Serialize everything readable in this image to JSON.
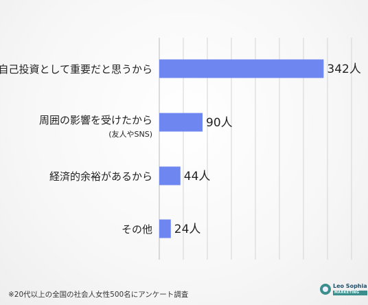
{
  "chart_data": {
    "type": "bar",
    "orientation": "horizontal",
    "categories": [
      {
        "label": "自己投資として重要だと思うから",
        "sublabel": ""
      },
      {
        "label": "周囲の影響を受けたから",
        "sublabel": "(友人やSNS)"
      },
      {
        "label": "経済的余裕があるから",
        "sublabel": ""
      },
      {
        "label": "その他",
        "sublabel": ""
      }
    ],
    "values": [
      342,
      90,
      44,
      24
    ],
    "value_labels": [
      "342人",
      "90人",
      "44人",
      "24人"
    ],
    "unit": "人",
    "xlim": [
      0,
      400
    ],
    "grid": true,
    "bar_color": "#6e86f0"
  },
  "footnote": "※20代以上の全国の社会人女性500名にアンケート調査",
  "logo": {
    "name": "Leo Sophia",
    "sub": "MARKETING",
    "icon": "leo-sophia-logo-icon"
  }
}
